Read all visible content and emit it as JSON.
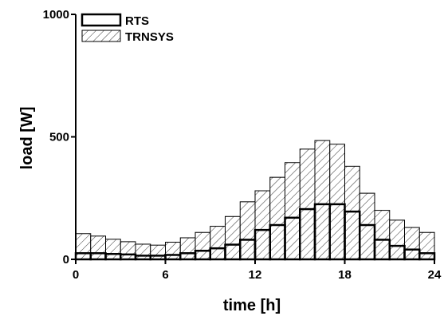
{
  "chart_data": {
    "type": "bar",
    "title": "",
    "xlabel": "time [h]",
    "ylabel": "load [W]",
    "xlim": [
      0,
      24
    ],
    "ylim": [
      0,
      1000
    ],
    "xticks": [
      0,
      6,
      12,
      18,
      24
    ],
    "yticks": [
      0,
      500,
      1000
    ],
    "grid": false,
    "legend": "top-left",
    "x": [
      0,
      1,
      2,
      3,
      4,
      5,
      6,
      7,
      8,
      9,
      10,
      11,
      12,
      13,
      14,
      15,
      16,
      17,
      18,
      19,
      20,
      21,
      22,
      23
    ],
    "series": [
      {
        "name": "TRNSYS",
        "style": "hatched",
        "values": [
          105,
          95,
          82,
          72,
          62,
          58,
          70,
          88,
          110,
          135,
          175,
          235,
          280,
          335,
          395,
          450,
          485,
          470,
          380,
          270,
          200,
          160,
          130,
          110
        ]
      },
      {
        "name": "RTS",
        "style": "outline",
        "values": [
          25,
          25,
          22,
          20,
          15,
          15,
          18,
          25,
          35,
          45,
          60,
          80,
          120,
          140,
          170,
          205,
          225,
          225,
          195,
          140,
          80,
          55,
          40,
          25
        ]
      }
    ]
  }
}
